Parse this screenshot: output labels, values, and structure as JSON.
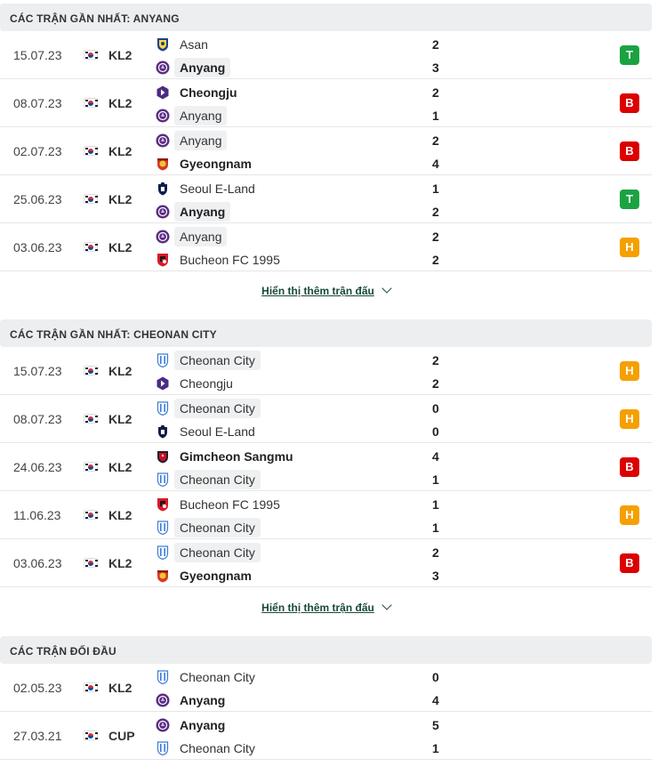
{
  "sections": [
    {
      "title": "CÁC TRẬN GẦN NHẤT: ANYANG",
      "matches": [
        {
          "date": "15.07.23",
          "comp": "KL2",
          "home": "Asan",
          "home_logo": "asan",
          "home_score": "2",
          "away": "Anyang",
          "away_logo": "anyang",
          "away_score": "3",
          "result": "T",
          "home_hl": false,
          "away_hl": true,
          "home_bold": false,
          "away_bold": true
        },
        {
          "date": "08.07.23",
          "comp": "KL2",
          "home": "Cheongju",
          "home_logo": "cheongju",
          "home_score": "2",
          "away": "Anyang",
          "away_logo": "anyang",
          "away_score": "1",
          "result": "B",
          "home_hl": false,
          "away_hl": true,
          "home_bold": true,
          "away_bold": false
        },
        {
          "date": "02.07.23",
          "comp": "KL2",
          "home": "Anyang",
          "home_logo": "anyang",
          "home_score": "2",
          "away": "Gyeongnam",
          "away_logo": "gyeongnam",
          "away_score": "4",
          "result": "B",
          "home_hl": true,
          "away_hl": false,
          "home_bold": false,
          "away_bold": true
        },
        {
          "date": "25.06.23",
          "comp": "KL2",
          "home": "Seoul E-Land",
          "home_logo": "seoul",
          "home_score": "1",
          "away": "Anyang",
          "away_logo": "anyang",
          "away_score": "2",
          "result": "T",
          "home_hl": false,
          "away_hl": true,
          "home_bold": false,
          "away_bold": true
        },
        {
          "date": "03.06.23",
          "comp": "KL2",
          "home": "Anyang",
          "home_logo": "anyang",
          "home_score": "2",
          "away": "Bucheon FC 1995",
          "away_logo": "bucheon",
          "away_score": "2",
          "result": "H",
          "home_hl": true,
          "away_hl": false,
          "home_bold": false,
          "away_bold": false
        }
      ],
      "show_more": "Hiển thị thêm trận đấu"
    },
    {
      "title": "CÁC TRẬN GẦN NHẤT: CHEONAN CITY",
      "matches": [
        {
          "date": "15.07.23",
          "comp": "KL2",
          "home": "Cheonan City",
          "home_logo": "cheonan",
          "home_score": "2",
          "away": "Cheongju",
          "away_logo": "cheongju",
          "away_score": "2",
          "result": "H",
          "home_hl": true,
          "away_hl": false,
          "home_bold": false,
          "away_bold": false
        },
        {
          "date": "08.07.23",
          "comp": "KL2",
          "home": "Cheonan City",
          "home_logo": "cheonan",
          "home_score": "0",
          "away": "Seoul E-Land",
          "away_logo": "seoul",
          "away_score": "0",
          "result": "H",
          "home_hl": true,
          "away_hl": false,
          "home_bold": false,
          "away_bold": false
        },
        {
          "date": "24.06.23",
          "comp": "KL2",
          "home": "Gimcheon Sangmu",
          "home_logo": "gimcheon",
          "home_score": "4",
          "away": "Cheonan City",
          "away_logo": "cheonan",
          "away_score": "1",
          "result": "B",
          "home_hl": false,
          "away_hl": true,
          "home_bold": true,
          "away_bold": false
        },
        {
          "date": "11.06.23",
          "comp": "KL2",
          "home": "Bucheon FC 1995",
          "home_logo": "bucheon",
          "home_score": "1",
          "away": "Cheonan City",
          "away_logo": "cheonan",
          "away_score": "1",
          "result": "H",
          "home_hl": false,
          "away_hl": true,
          "home_bold": false,
          "away_bold": false
        },
        {
          "date": "03.06.23",
          "comp": "KL2",
          "home": "Cheonan City",
          "home_logo": "cheonan",
          "home_score": "2",
          "away": "Gyeongnam",
          "away_logo": "gyeongnam",
          "away_score": "3",
          "result": "B",
          "home_hl": true,
          "away_hl": false,
          "home_bold": false,
          "away_bold": true
        }
      ],
      "show_more": "Hiển thị thêm trận đấu"
    },
    {
      "title": "CÁC TRẬN ĐỐI ĐẦU",
      "matches": [
        {
          "date": "02.05.23",
          "comp": "KL2",
          "home": "Cheonan City",
          "home_logo": "cheonan",
          "home_score": "0",
          "away": "Anyang",
          "away_logo": "anyang",
          "away_score": "4",
          "result": "",
          "home_hl": false,
          "away_hl": false,
          "home_bold": false,
          "away_bold": true
        },
        {
          "date": "27.03.21",
          "comp": "CUP",
          "home": "Anyang",
          "home_logo": "anyang",
          "home_score": "5",
          "away": "Cheonan City",
          "away_logo": "cheonan",
          "away_score": "1",
          "result": "",
          "home_hl": false,
          "away_hl": false,
          "home_bold": true,
          "away_bold": false
        }
      ],
      "show_more": ""
    }
  ],
  "colors": {
    "win": "#1ba341",
    "loss": "#dc0000",
    "draw": "#f5a000",
    "link": "#18493a"
  }
}
